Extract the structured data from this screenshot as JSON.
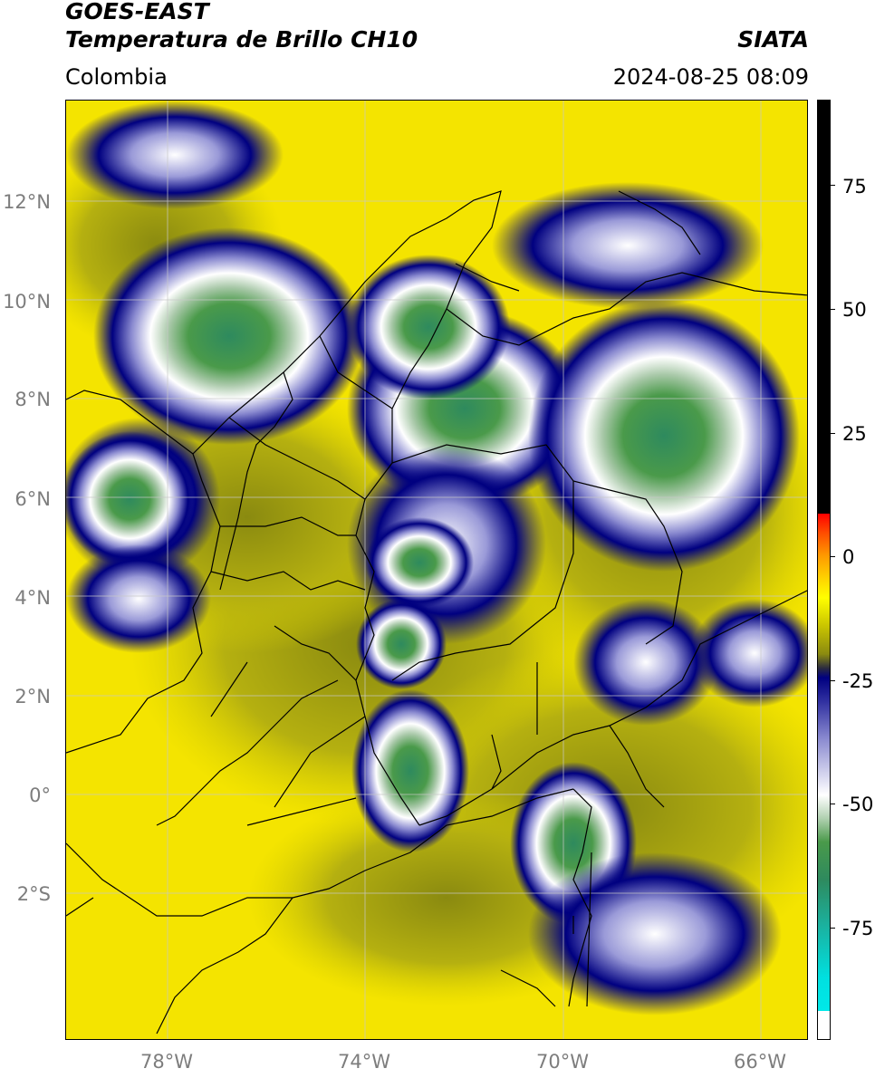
{
  "header": {
    "satellite": "GOES-EAST",
    "product": "Temperatura de Brillo CH10",
    "organization": "SIATA",
    "region": "Colombia",
    "datetime": "2024-08-25 08:09"
  },
  "map": {
    "lat_labels": [
      "12°N",
      "10°N",
      "8°N",
      "6°N",
      "4°N",
      "2°N",
      "0°",
      "2°S"
    ],
    "lon_labels": [
      "78°W",
      "74°W",
      "70°W",
      "66°W"
    ]
  },
  "colorbar": {
    "ticks": [
      "75",
      "50",
      "25",
      "0",
      "-25",
      "-50",
      "-75"
    ]
  },
  "colors": {
    "warm_background": "#f4e400",
    "cold_cloud": "#000080",
    "coldest_cloud": "#2e8a5e"
  }
}
